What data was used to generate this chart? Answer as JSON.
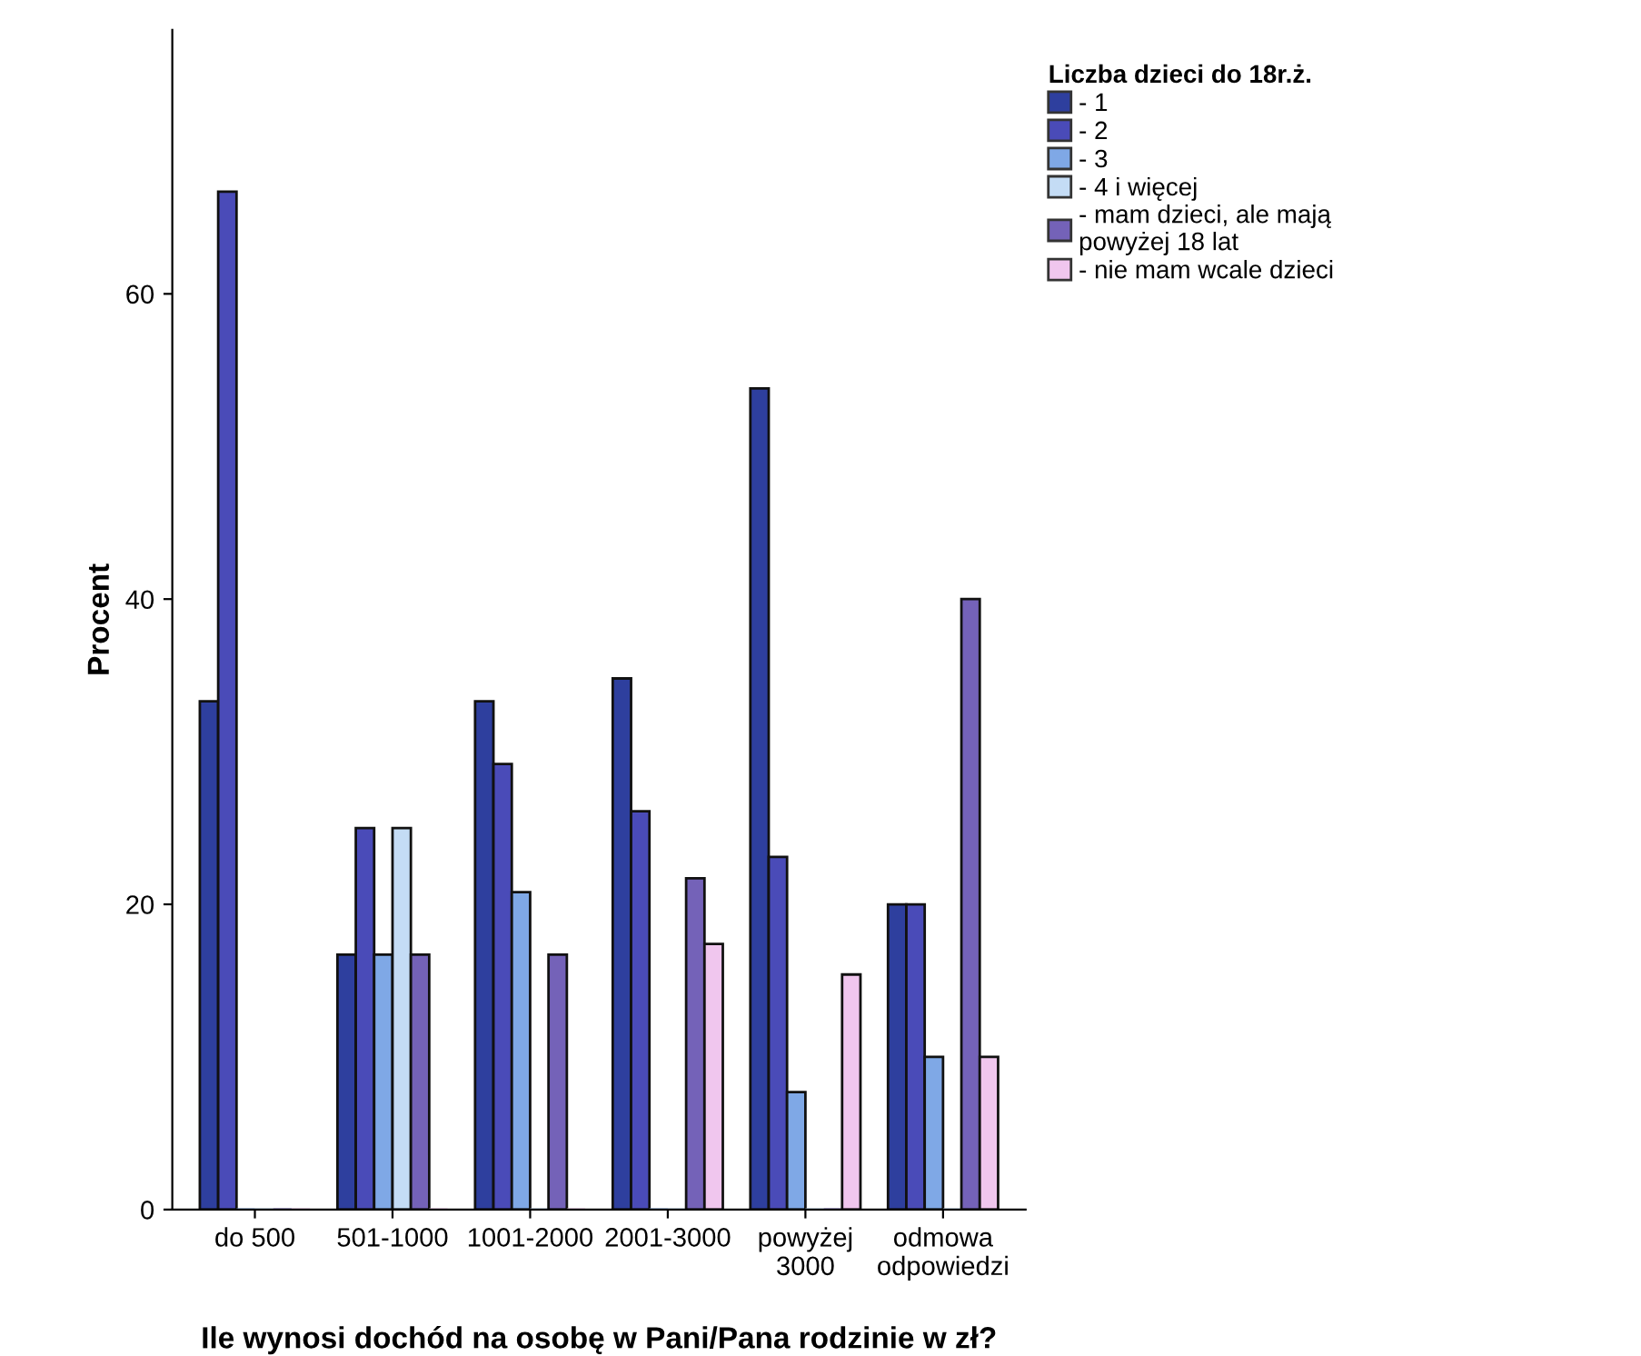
{
  "chart_data": {
    "type": "bar",
    "xlabel": "Ile wynosi dochód na osobę w Pani/Pana rodzinie w zł?",
    "ylabel": "Procent",
    "legend_title": "Liczba dzieci do 18r.ż.",
    "categories": [
      "do 500",
      "501-1000",
      "1001-2000",
      "2001-3000",
      "powyżej\n3000",
      "odmowa\nodpowiedzi"
    ],
    "series": [
      {
        "name": "- 1",
        "color": "#2e3f9e",
        "values": [
          33.3,
          16.7,
          33.3,
          34.8,
          53.8,
          20
        ]
      },
      {
        "name": "- 2",
        "color": "#4a4bb8",
        "values": [
          66.7,
          25,
          29.2,
          26.1,
          23.1,
          20
        ]
      },
      {
        "name": "- 3",
        "color": "#7fa8e6",
        "values": [
          0,
          16.7,
          20.8,
          0,
          7.7,
          10
        ]
      },
      {
        "name": "- 4 i więcej",
        "color": "#c4dcf5",
        "values": [
          0,
          25,
          0,
          0,
          0,
          0
        ]
      },
      {
        "name": "- mam dzieci, ale mają\npowyżej 18 lat",
        "color": "#7462b8",
        "values": [
          0,
          16.7,
          16.7,
          21.7,
          0,
          40
        ]
      },
      {
        "name": "- nie mam wcale dzieci",
        "color": "#f0c6ee",
        "values": [
          0,
          0,
          0,
          17.4,
          15.4,
          10
        ]
      }
    ],
    "ylim": [
      0,
      77.3
    ],
    "yticks": [
      0,
      20,
      40,
      60
    ],
    "grid": false,
    "legend": "top right"
  }
}
